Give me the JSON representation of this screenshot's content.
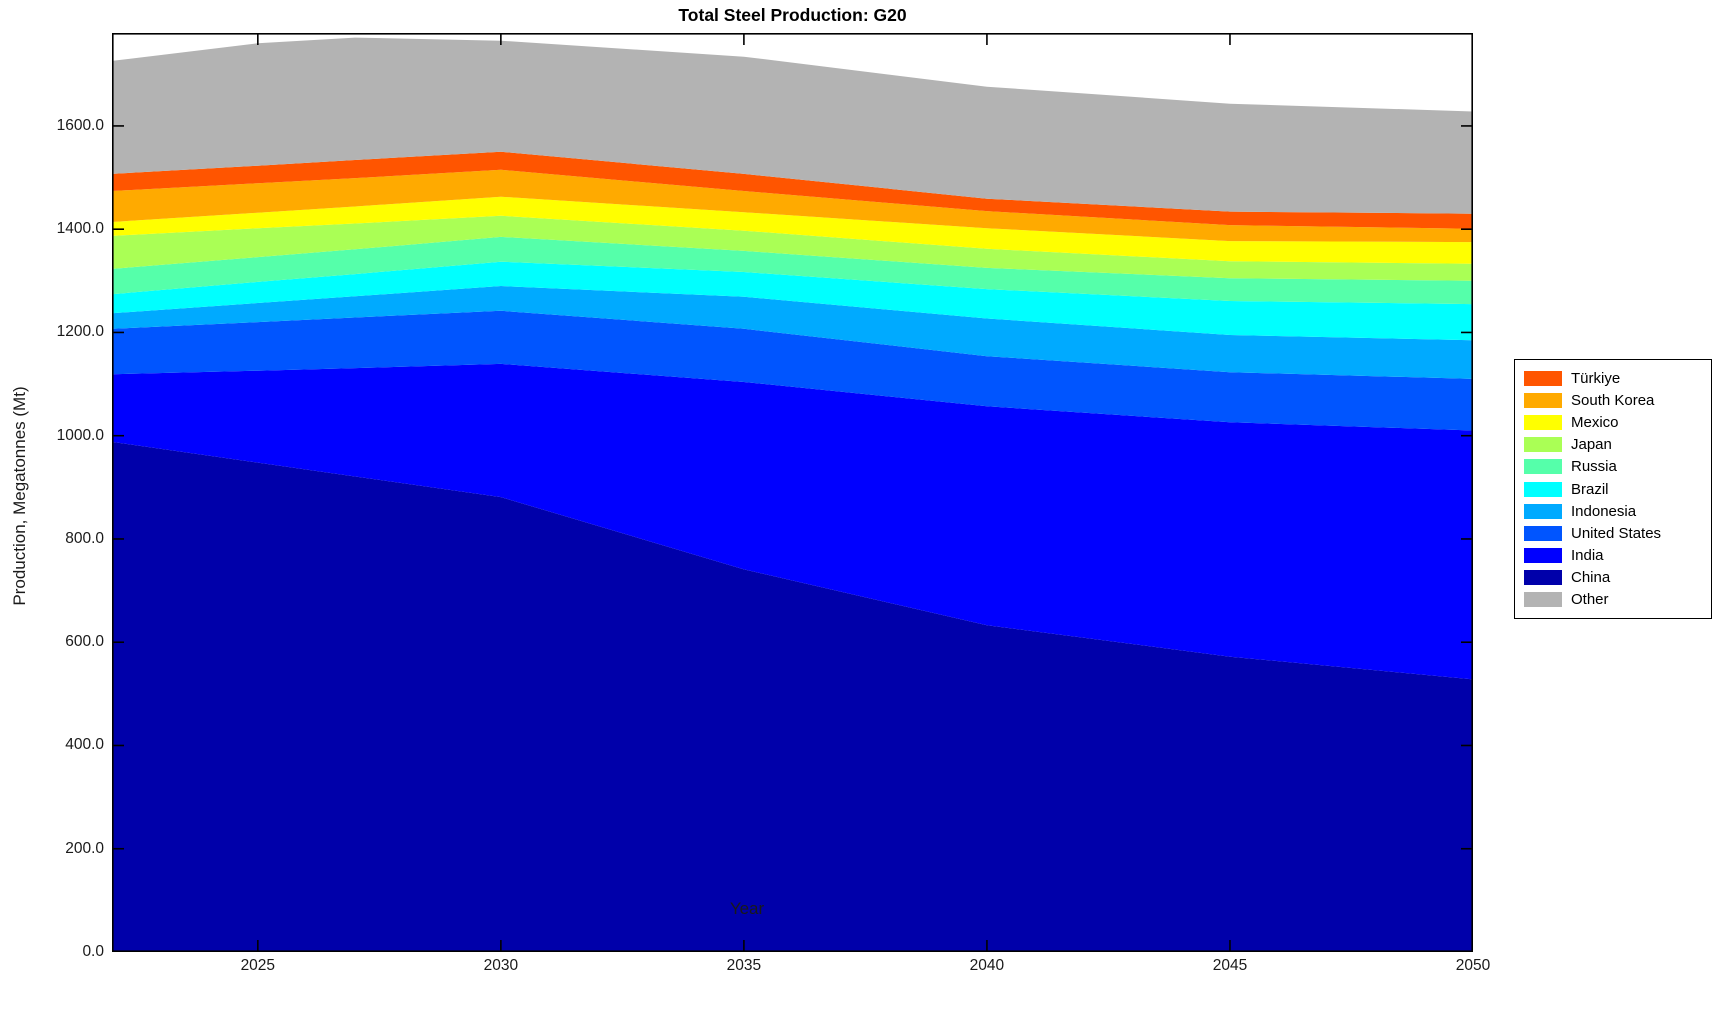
{
  "title": "Total Steel Production: G20",
  "chart_data": {
    "type": "area",
    "stacked": true,
    "title": "Total Steel Production: G20",
    "xlabel": "Year",
    "ylabel": "Production, Megatonnes (Mt)",
    "xlim": [
      2022,
      2050
    ],
    "ylim": [
      0,
      1780
    ],
    "xticks": [
      2025,
      2030,
      2035,
      2040,
      2045,
      2050
    ],
    "yticks": [
      0,
      200,
      400,
      600,
      800,
      1000,
      1200,
      1400,
      1600
    ],
    "ytick_labels": [
      "0.0",
      "200.0",
      "400.0",
      "600.0",
      "800.0",
      "1000.0",
      "1200.0",
      "1400.0",
      "1600.0"
    ],
    "grid": false,
    "legend_position": "right-outside",
    "x": [
      2022,
      2025,
      2027,
      2030,
      2035,
      2040,
      2045,
      2050
    ],
    "series": [
      {
        "name": "China",
        "color": "#0000AA",
        "values": [
          988,
          948,
          921,
          881,
          741,
          633,
          572,
          528
        ]
      },
      {
        "name": "India",
        "color": "#0000FF",
        "values": [
          131,
          178,
          210,
          258,
          363,
          424,
          454,
          482
        ]
      },
      {
        "name": "United States",
        "color": "#0055FF",
        "values": [
          88,
          94,
          98,
          103,
          103,
          97,
          97,
          100
        ]
      },
      {
        "name": "Indonesia",
        "color": "#00AAFF",
        "values": [
          30,
          37,
          41,
          48,
          62,
          73,
          72,
          75
        ]
      },
      {
        "name": "Brazil",
        "color": "#00FFFF",
        "values": [
          37,
          41,
          43,
          47,
          48,
          57,
          66,
          70
        ]
      },
      {
        "name": "Russia",
        "color": "#55FFAA",
        "values": [
          49,
          48,
          48,
          48,
          41,
          41,
          44,
          45
        ]
      },
      {
        "name": "Japan",
        "color": "#AAFF55",
        "values": [
          64,
          56,
          50,
          41,
          39,
          37,
          33,
          33
        ]
      },
      {
        "name": "Mexico",
        "color": "#FFFF00",
        "values": [
          27,
          30,
          33,
          37,
          36,
          40,
          39,
          42
        ]
      },
      {
        "name": "South Korea",
        "color": "#FFAA00",
        "values": [
          60,
          57,
          55,
          52,
          41,
          33,
          31,
          26
        ]
      },
      {
        "name": "Türkiye",
        "color": "#FF5500",
        "values": [
          33,
          34,
          35,
          35,
          33,
          24,
          26,
          29
        ]
      },
      {
        "name": "Other",
        "color": "#B3B3B3",
        "values": [
          219,
          237,
          237,
          215,
          227,
          217,
          209,
          198
        ]
      }
    ]
  },
  "axis": {
    "box_color": "#000000",
    "tick_color": "#000000",
    "tick_label_color": "#1a1a1a"
  }
}
